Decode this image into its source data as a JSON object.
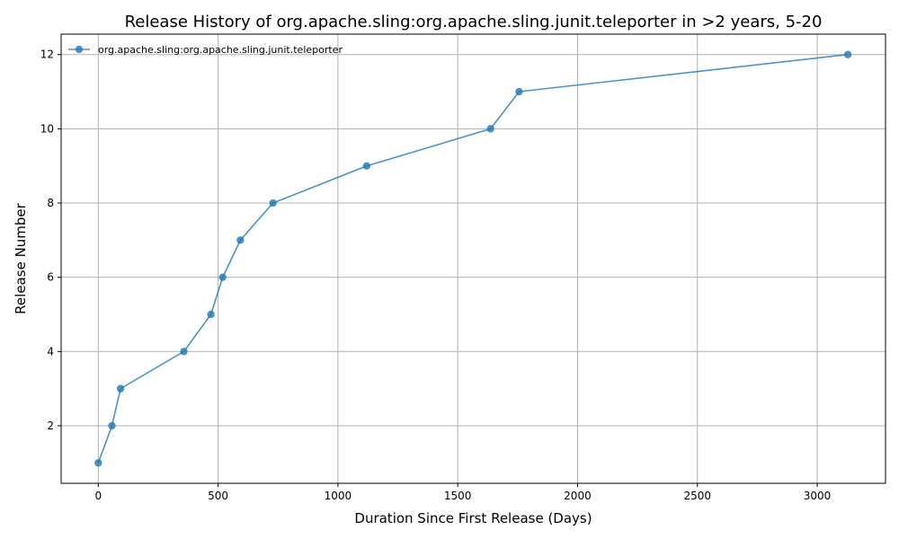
{
  "chart_data": {
    "type": "line",
    "title": "Release History of org.apache.sling:org.apache.sling.junit.teleporter in >2 years, 5-20",
    "xlabel": "Duration Since First Release (Days)",
    "ylabel": "Release Number",
    "xlim": [
      -155,
      3285
    ],
    "ylim": [
      0.45,
      12.55
    ],
    "x_ticks": [
      0,
      500,
      1000,
      1500,
      2000,
      2500,
      3000
    ],
    "y_ticks": [
      2,
      4,
      6,
      8,
      10,
      12
    ],
    "grid": true,
    "legend_position": "top-left",
    "series": [
      {
        "name": "org.apache.sling:org.apache.sling.junit.teleporter",
        "color": "#1f77b4",
        "x": [
          0,
          57,
          93,
          357,
          470,
          519,
          593,
          729,
          1120,
          1637,
          1756,
          3128
        ],
        "y": [
          1,
          2,
          3,
          4,
          5,
          6,
          7,
          8,
          9,
          10,
          11,
          12
        ]
      }
    ]
  }
}
